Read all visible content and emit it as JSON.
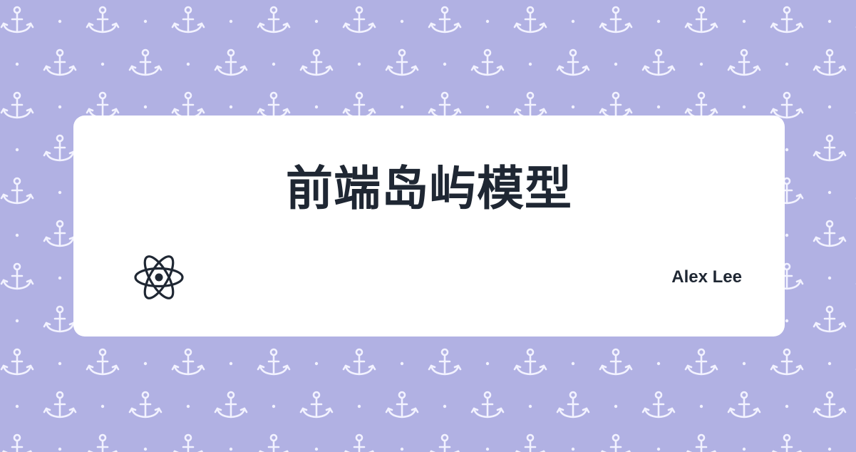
{
  "background": {
    "color": "#b1b1e3",
    "pattern_icon": "anchor-icon",
    "pattern_color": "#f2f2ff"
  },
  "card": {
    "title": "前端岛屿模型",
    "logo_icon": "react-atom-icon",
    "author": "Alex Lee",
    "text_color": "#1f2733"
  }
}
